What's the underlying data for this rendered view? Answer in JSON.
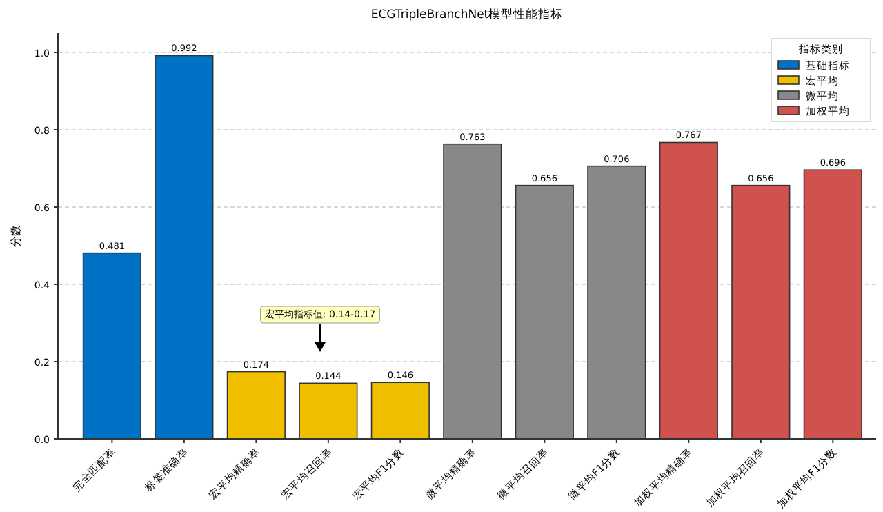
{
  "chart_data": {
    "type": "bar",
    "title": "ECGTripleBranchNet模型性能指标",
    "ylabel": "分数",
    "legend_title": "指标类别",
    "categories": [
      "完全匹配率",
      "标签准确率",
      "宏平均精确率",
      "宏平均召回率",
      "宏平均F1分数",
      "微平均精确率",
      "微平均召回率",
      "微平均F1分数",
      "加权平均精确率",
      "加权平均召回率",
      "加权平均F1分数"
    ],
    "series": [
      {
        "name": "基础指标",
        "color": "#0072c6",
        "values": [
          0.481,
          0.992,
          null,
          null,
          null,
          null,
          null,
          null,
          null,
          null,
          null
        ]
      },
      {
        "name": "宏平均",
        "color": "#f0c000",
        "values": [
          null,
          null,
          0.174,
          0.144,
          0.146,
          null,
          null,
          null,
          null,
          null,
          null
        ]
      },
      {
        "name": "微平均",
        "color": "#888888",
        "values": [
          null,
          null,
          null,
          null,
          null,
          0.763,
          0.656,
          0.706,
          null,
          null,
          null
        ]
      },
      {
        "name": "加权平均",
        "color": "#d0524c",
        "values": [
          null,
          null,
          null,
          null,
          null,
          null,
          null,
          null,
          0.767,
          0.656,
          0.696
        ]
      }
    ],
    "ylim": [
      0,
      1.05
    ],
    "yticks": [
      {
        "value": 0,
        "label": "0.0"
      },
      0.2,
      0.4,
      0.6,
      0.8,
      {
        "value": 1,
        "label": "1.0"
      }
    ],
    "grid": "y",
    "legend": "top right",
    "data_labels": true,
    "annotations": [
      "宏平均指标值: 0.14-0.17"
    ]
  }
}
